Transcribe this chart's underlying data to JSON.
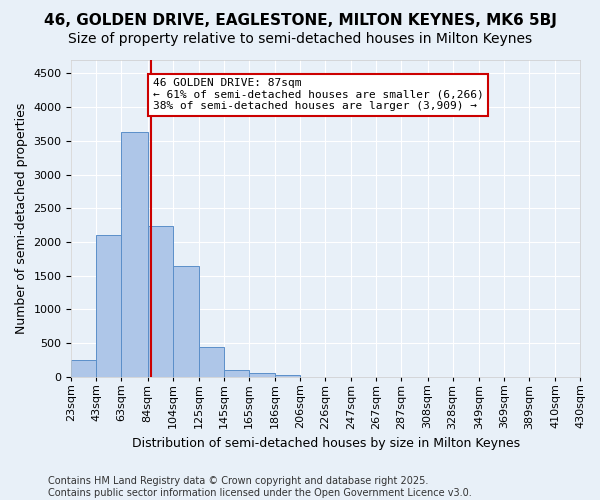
{
  "title_line1": "46, GOLDEN DRIVE, EAGLESTONE, MILTON KEYNES, MK6 5BJ",
  "title_line2": "Size of property relative to semi-detached houses in Milton Keynes",
  "xlabel": "Distribution of semi-detached houses by size in Milton Keynes",
  "ylabel": "Number of semi-detached properties",
  "bin_labels": [
    "23sqm",
    "43sqm",
    "63sqm",
    "84sqm",
    "104sqm",
    "125sqm",
    "145sqm",
    "165sqm",
    "186sqm",
    "206sqm",
    "226sqm",
    "247sqm",
    "267sqm",
    "287sqm",
    "308sqm",
    "328sqm",
    "349sqm",
    "369sqm",
    "389sqm",
    "410sqm",
    "430sqm"
  ],
  "bin_edges": [
    23,
    43,
    63,
    84,
    104,
    125,
    145,
    165,
    186,
    206,
    226,
    247,
    267,
    287,
    308,
    328,
    349,
    369,
    389,
    410,
    430
  ],
  "bar_heights": [
    250,
    2100,
    3630,
    2230,
    1640,
    440,
    100,
    55,
    20,
    0,
    0,
    0,
    0,
    0,
    0,
    0,
    0,
    0,
    0,
    0
  ],
  "bar_color": "#aec6e8",
  "bar_edge_color": "#5b8fc9",
  "vline_x": 87,
  "vline_color": "#cc0000",
  "annotation_text": "46 GOLDEN DRIVE: 87sqm\n← 61% of semi-detached houses are smaller (6,266)\n38% of semi-detached houses are larger (3,909) →",
  "annotation_box_color": "#ffffff",
  "annotation_box_edge": "#cc0000",
  "ylim": [
    0,
    4700
  ],
  "yticks": [
    0,
    500,
    1000,
    1500,
    2000,
    2500,
    3000,
    3500,
    4000,
    4500
  ],
  "background_color": "#e8f0f8",
  "grid_color": "#ffffff",
  "footer_text": "Contains HM Land Registry data © Crown copyright and database right 2025.\nContains public sector information licensed under the Open Government Licence v3.0.",
  "title_fontsize": 11,
  "subtitle_fontsize": 10,
  "axis_label_fontsize": 9,
  "tick_fontsize": 8,
  "annotation_fontsize": 8,
  "footer_fontsize": 7
}
